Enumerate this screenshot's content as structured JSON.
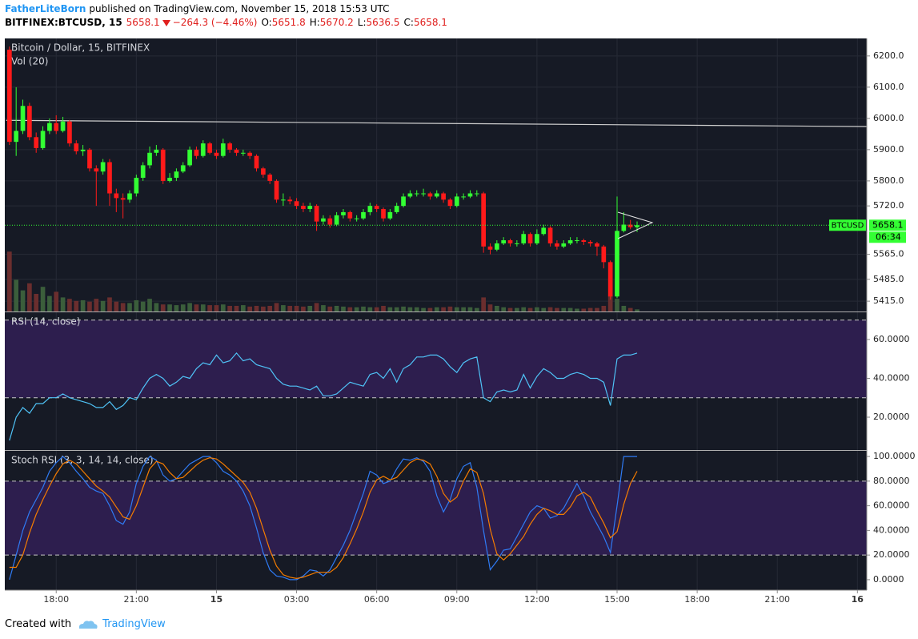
{
  "header": {
    "author": "FatherLiteBorn",
    "published": "published on TradingView.com, November 15, 2018 15:53 UTC",
    "symbol": "BITFINEX:BTCUSD, 15",
    "change": "−264.3 (−4.46%)",
    "o_label": "O:",
    "h_label": "H:",
    "l_label": "L:",
    "c_label": "C:"
  },
  "chart_data": [
    {
      "type": "candlestick",
      "title": "Bitcoin / Dollar, 15, BITFINEX",
      "volume_title": "Vol (20)",
      "up_color": "#33ff33",
      "down_color": "#ff1a1a",
      "volume_up_color": "#3b5e3b",
      "volume_down_color": "#6b2e2e",
      "price_line_color": "#33ff33",
      "last_price_label": "BTCUSD",
      "countdown": "06:34",
      "xlim": [
        -0.7,
        128.4
      ],
      "xticks": [
        {
          "value": 7,
          "label": "18:00"
        },
        {
          "value": 19,
          "label": "21:00"
        },
        {
          "value": 31,
          "label": "15"
        },
        {
          "value": 43,
          "label": "03:00"
        },
        {
          "value": 55,
          "label": "06:00"
        },
        {
          "value": 67,
          "label": "09:00"
        },
        {
          "value": 79,
          "label": "12:00"
        },
        {
          "value": 91,
          "label": "15:00"
        },
        {
          "value": 103,
          "label": "18:00"
        },
        {
          "value": 115,
          "label": "21:00"
        },
        {
          "value": 127,
          "label": "16"
        }
      ],
      "ylim": [
        5382,
        6256
      ],
      "yticks": [
        {
          "value": 6200,
          "label": "6200.0"
        },
        {
          "value": 6100,
          "label": "6100.0"
        },
        {
          "value": 6000,
          "label": "6000.0"
        },
        {
          "value": 5900,
          "label": "5900.0"
        },
        {
          "value": 5800,
          "label": "5800.0"
        },
        {
          "value": 5720,
          "label": "5720.0"
        },
        {
          "value": 5565,
          "label": "5565.0"
        },
        {
          "value": 5485,
          "label": "5485.0"
        },
        {
          "value": 5415,
          "label": "5415.0"
        }
      ],
      "volume_ylim": [
        0,
        100
      ],
      "trend_line": {
        "x": [
          -0.5,
          128.4
        ],
        "y": [
          5994,
          5974
        ],
        "color": "#cfcfcf"
      },
      "open": [
        6220,
        5925,
        5960,
        6040,
        5940,
        5905,
        5960,
        5985,
        5960,
        5990,
        5920,
        5895,
        5900,
        5840,
        5830,
        5860,
        5760,
        5745,
        5740,
        5760,
        5810,
        5850,
        5890,
        5900,
        5800,
        5810,
        5830,
        5850,
        5900,
        5880,
        5920,
        5890,
        5880,
        5920,
        5900,
        5890,
        5890,
        5880,
        5840,
        5820,
        5800,
        5740,
        5740,
        5735,
        5720,
        5710,
        5720,
        5670,
        5680,
        5660,
        5690,
        5700,
        5680,
        5680,
        5700,
        5720,
        5710,
        5680,
        5700,
        5720,
        5750,
        5760,
        5760,
        5760,
        5750,
        5760,
        5740,
        5720,
        5750,
        5750,
        5760,
        5760,
        5590,
        5580,
        5600,
        5610,
        5600,
        5600,
        5630,
        5600,
        5630,
        5650,
        5600,
        5590,
        5600,
        5610,
        5610,
        5605,
        5600,
        5590,
        5540,
        5430,
        5640,
        5660,
        5651.8
      ],
      "high": [
        6230,
        6100,
        6060,
        6050,
        5955,
        5975,
        6000,
        6010,
        6005,
        5995,
        5930,
        5915,
        5905,
        5850,
        5870,
        5870,
        5775,
        5760,
        5770,
        5820,
        5860,
        5910,
        5915,
        5905,
        5825,
        5840,
        5860,
        5910,
        5910,
        5930,
        5925,
        5900,
        5935,
        5925,
        5905,
        5900,
        5895,
        5885,
        5845,
        5825,
        5805,
        5760,
        5750,
        5745,
        5730,
        5730,
        5725,
        5690,
        5690,
        5700,
        5710,
        5705,
        5690,
        5710,
        5730,
        5725,
        5715,
        5710,
        5730,
        5760,
        5770,
        5770,
        5775,
        5765,
        5770,
        5765,
        5745,
        5760,
        5760,
        5770,
        5770,
        5765,
        5600,
        5610,
        5620,
        5615,
        5610,
        5640,
        5635,
        5645,
        5660,
        5655,
        5610,
        5610,
        5620,
        5620,
        5615,
        5610,
        5605,
        5595,
        5545,
        5750,
        5700,
        5675,
        5670.2
      ],
      "low": [
        5915,
        5880,
        5950,
        5930,
        5890,
        5900,
        5950,
        5950,
        5955,
        5910,
        5885,
        5880,
        5830,
        5720,
        5820,
        5720,
        5700,
        5680,
        5730,
        5750,
        5800,
        5840,
        5880,
        5790,
        5795,
        5800,
        5825,
        5845,
        5870,
        5875,
        5885,
        5870,
        5875,
        5890,
        5880,
        5880,
        5870,
        5830,
        5810,
        5790,
        5730,
        5720,
        5725,
        5710,
        5700,
        5700,
        5640,
        5660,
        5650,
        5655,
        5680,
        5670,
        5670,
        5675,
        5690,
        5700,
        5670,
        5675,
        5695,
        5715,
        5745,
        5750,
        5750,
        5740,
        5745,
        5730,
        5710,
        5715,
        5740,
        5745,
        5750,
        5570,
        5565,
        5575,
        5595,
        5590,
        5590,
        5595,
        5590,
        5595,
        5625,
        5590,
        5580,
        5585,
        5595,
        5600,
        5595,
        5590,
        5560,
        5520,
        5420,
        5425,
        5635,
        5645,
        5636.5
      ],
      "close": [
        5925,
        5960,
        6040,
        5940,
        5905,
        5960,
        5985,
        5960,
        5990,
        5920,
        5895,
        5900,
        5840,
        5830,
        5860,
        5760,
        5745,
        5740,
        5760,
        5810,
        5850,
        5890,
        5900,
        5800,
        5810,
        5830,
        5850,
        5900,
        5880,
        5920,
        5890,
        5880,
        5920,
        5900,
        5890,
        5890,
        5880,
        5840,
        5820,
        5800,
        5740,
        5740,
        5735,
        5720,
        5710,
        5720,
        5670,
        5680,
        5660,
        5690,
        5700,
        5680,
        5680,
        5700,
        5720,
        5710,
        5680,
        5700,
        5720,
        5750,
        5760,
        5760,
        5760,
        5750,
        5760,
        5740,
        5720,
        5750,
        5750,
        5760,
        5760,
        5590,
        5580,
        5600,
        5610,
        5600,
        5600,
        5630,
        5600,
        5630,
        5650,
        5600,
        5590,
        5600,
        5610,
        5610,
        5605,
        5600,
        5590,
        5540,
        5430,
        5640,
        5660,
        5651.8,
        5658.1
      ],
      "volume": [
        85,
        45,
        30,
        40,
        25,
        35,
        22,
        28,
        20,
        18,
        15,
        16,
        14,
        18,
        15,
        20,
        14,
        12,
        12,
        16,
        14,
        18,
        12,
        10,
        10,
        9,
        10,
        12,
        10,
        10,
        9,
        9,
        10,
        8,
        8,
        9,
        7,
        8,
        7,
        8,
        12,
        9,
        8,
        8,
        7,
        8,
        12,
        9,
        7,
        8,
        7,
        6,
        6,
        7,
        6,
        6,
        8,
        6,
        6,
        7,
        6,
        6,
        5,
        5,
        6,
        6,
        7,
        6,
        6,
        6,
        5,
        20,
        10,
        8,
        6,
        5,
        5,
        6,
        5,
        6,
        5,
        6,
        5,
        5,
        5,
        4,
        4,
        5,
        5,
        8,
        22,
        18,
        8,
        5,
        3
      ]
    },
    {
      "type": "line",
      "title": "RSI (14, close)",
      "band_color": "#2d1e4e",
      "ylim": [
        3.1,
        74
      ],
      "bands": [
        30,
        70
      ],
      "yticks": [
        {
          "value": 60,
          "label": "60.0000"
        },
        {
          "value": 40,
          "label": "40.0000"
        },
        {
          "value": 20,
          "label": "20.0000"
        }
      ],
      "series": [
        {
          "color": "#4fc3f7",
          "values": [
            8,
            20,
            25,
            22,
            27,
            27,
            30,
            30,
            32,
            30,
            29,
            28,
            27,
            25,
            25,
            28,
            24,
            26,
            30,
            29,
            35,
            40,
            42,
            40,
            36,
            38,
            41,
            40,
            45,
            48,
            47,
            52,
            48,
            49,
            53,
            49,
            50,
            47,
            46,
            45,
            40,
            37,
            36,
            36,
            35,
            34,
            36,
            31,
            31,
            32,
            35,
            38,
            37,
            36,
            42,
            43,
            40,
            45,
            38,
            45,
            47,
            51,
            51,
            52,
            52,
            50,
            46,
            43,
            48,
            50,
            51,
            30,
            28,
            33,
            34,
            33,
            34,
            42,
            35,
            41,
            45,
            43,
            40,
            40,
            42,
            43,
            42,
            40,
            40,
            38,
            26,
            50,
            52,
            52,
            53
          ]
        }
      ]
    },
    {
      "type": "line",
      "title": "Stoch RSI (3, 3, 14, 14, close)",
      "band_color": "#2d1e4e",
      "ylim": [
        -8.5,
        104.6
      ],
      "bands": [
        20,
        80
      ],
      "yticks": [
        {
          "value": 100,
          "label": "100.0000"
        },
        {
          "value": 80,
          "label": "80.0000"
        },
        {
          "value": 60,
          "label": "60.0000"
        },
        {
          "value": 40,
          "label": "40.0000"
        },
        {
          "value": 20,
          "label": "20.0000"
        },
        {
          "value": 0,
          "label": "0.0000"
        }
      ],
      "series": [
        {
          "color": "#2f7bf5",
          "values": [
            0,
            20,
            40,
            55,
            65,
            75,
            88,
            95,
            100,
            95,
            88,
            82,
            75,
            72,
            70,
            60,
            48,
            45,
            55,
            78,
            92,
            100,
            97,
            85,
            80,
            82,
            88,
            94,
            97,
            100,
            100,
            95,
            88,
            85,
            80,
            72,
            60,
            42,
            22,
            8,
            3,
            2,
            0,
            0,
            3,
            8,
            7,
            3,
            8,
            18,
            28,
            40,
            55,
            70,
            88,
            85,
            78,
            80,
            90,
            98,
            97,
            99,
            96,
            88,
            68,
            55,
            65,
            82,
            92,
            95,
            75,
            40,
            8,
            15,
            24,
            25,
            35,
            45,
            55,
            60,
            58,
            50,
            52,
            58,
            68,
            78,
            68,
            55,
            45,
            35,
            22,
            60,
            100,
            100,
            100
          ]
        },
        {
          "color": "#f57c00",
          "values": [
            10,
            10,
            20,
            38,
            53,
            65,
            76,
            86,
            94,
            97,
            94,
            88,
            82,
            76,
            72,
            67,
            59,
            51,
            49,
            60,
            75,
            90,
            96,
            94,
            87,
            82,
            83,
            88,
            93,
            97,
            99,
            98,
            94,
            89,
            84,
            79,
            71,
            58,
            41,
            24,
            11,
            4,
            2,
            1,
            2,
            4,
            6,
            6,
            6,
            10,
            18,
            29,
            41,
            55,
            71,
            81,
            84,
            81,
            83,
            89,
            95,
            98,
            97,
            94,
            84,
            70,
            63,
            67,
            80,
            90,
            87,
            70,
            41,
            21,
            16,
            21,
            28,
            35,
            45,
            53,
            58,
            56,
            53,
            53,
            59,
            68,
            71,
            67,
            56,
            46,
            34,
            39,
            61,
            78,
            88
          ]
        }
      ]
    }
  ],
  "footer": {
    "created": "Created with",
    "brand": "TradingView"
  }
}
